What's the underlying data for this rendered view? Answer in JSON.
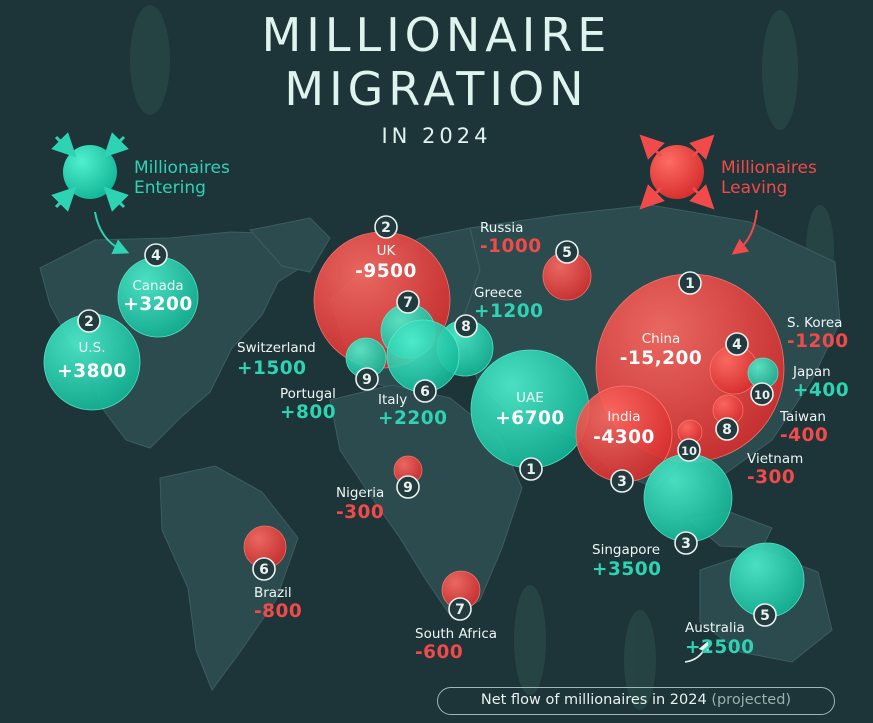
{
  "title": {
    "line1": "MILLIONAIRE",
    "line2": "MIGRATION",
    "line3": "IN 2024"
  },
  "legend": {
    "entering": {
      "line1": "Millionaires",
      "line2": "Entering",
      "color": "#2ed3b4"
    },
    "leaving": {
      "line1": "Millionaires",
      "line2": "Leaving",
      "color": "#f04a4a"
    }
  },
  "footer": {
    "text": "Net flow of millionaires in 2024",
    "note": "(projected)"
  },
  "countries": [
    {
      "rank": "2",
      "name": "U.S.",
      "value": "+3800",
      "type": "in"
    },
    {
      "rank": "4",
      "name": "Canada",
      "value": "+3200",
      "type": "in"
    },
    {
      "rank": "2",
      "name": "UK",
      "value": "-9500",
      "type": "out"
    },
    {
      "rank": "5",
      "name": "Russia",
      "value": "-1000",
      "type": "out"
    },
    {
      "rank": "8",
      "name": "Greece",
      "value": "+1200",
      "type": "in"
    },
    {
      "rank": "7",
      "name": "Switzerland",
      "value": "+1500",
      "type": "in"
    },
    {
      "rank": "9",
      "name": "Portugal",
      "value": "+800",
      "type": "in"
    },
    {
      "rank": "6",
      "name": "Italy",
      "value": "+2200",
      "type": "in"
    },
    {
      "rank": "1",
      "name": "UAE",
      "value": "+6700",
      "type": "in"
    },
    {
      "rank": "1",
      "name": "China",
      "value": "-15,200",
      "type": "out"
    },
    {
      "rank": "3",
      "name": "India",
      "value": "-4300",
      "type": "out"
    },
    {
      "rank": "4",
      "name": "S. Korea",
      "value": "-1200",
      "type": "out"
    },
    {
      "rank": "10",
      "name": "Japan",
      "value": "+400",
      "type": "in"
    },
    {
      "rank": "8",
      "name": "Taiwan",
      "value": "-400",
      "type": "out"
    },
    {
      "rank": "10",
      "name": "Vietnam",
      "value": "-300",
      "type": "out"
    },
    {
      "rank": "3",
      "name": "Singapore",
      "value": "+3500",
      "type": "in"
    },
    {
      "rank": "5",
      "name": "Australia",
      "value": "+2500",
      "type": "in"
    },
    {
      "rank": "9",
      "name": "Nigeria",
      "value": "-300",
      "type": "out"
    },
    {
      "rank": "6",
      "name": "Brazil",
      "value": "-800",
      "type": "out"
    },
    {
      "rank": "7",
      "name": "South Africa",
      "value": "-600",
      "type": "out"
    }
  ]
}
